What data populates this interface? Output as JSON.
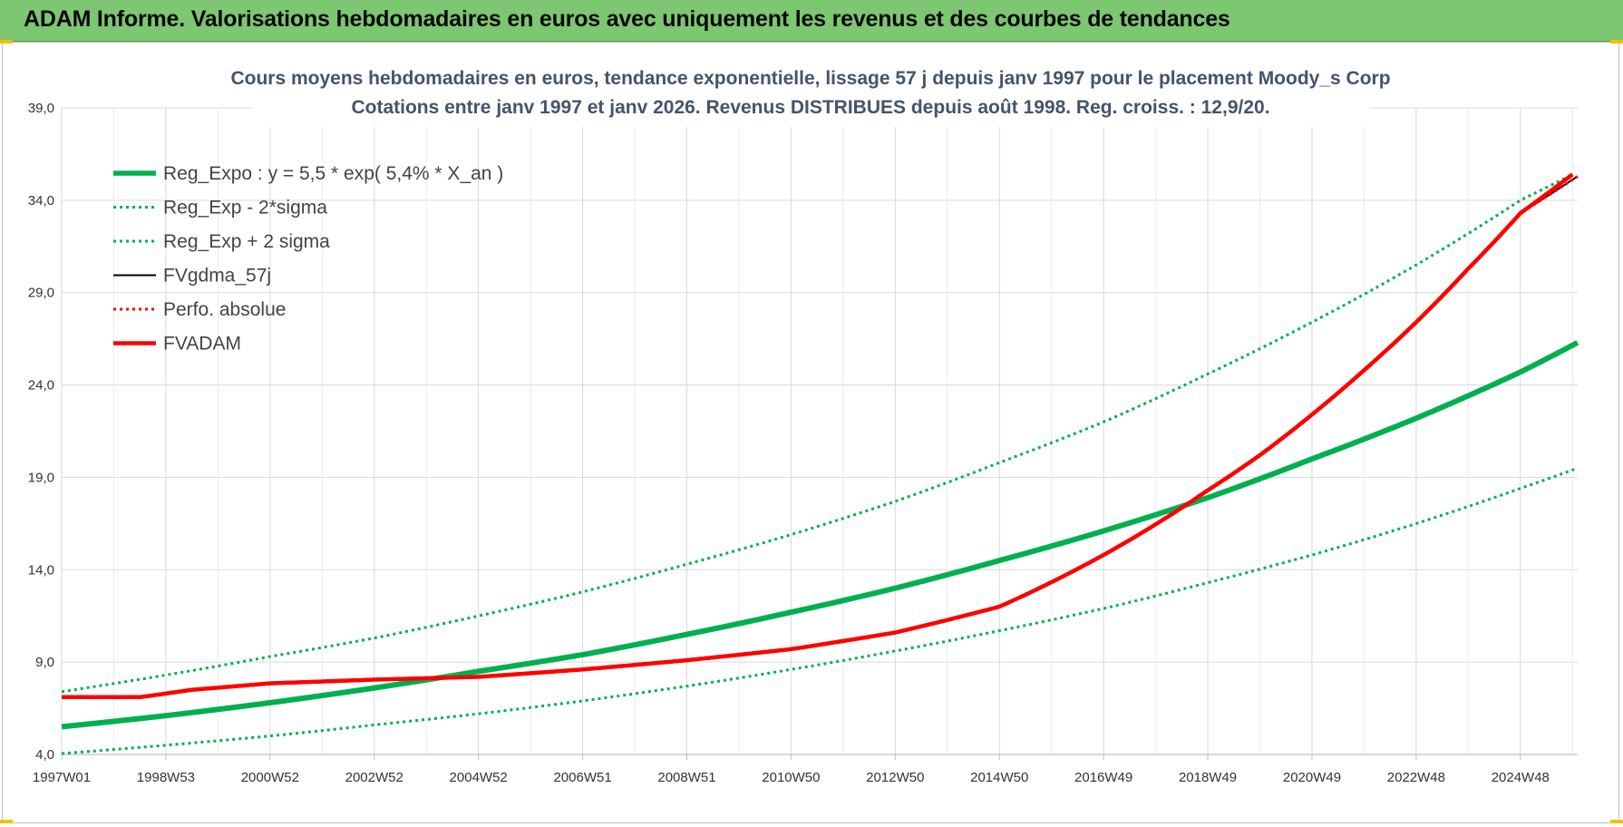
{
  "banner": {
    "title": "ADAM Informe. Valorisations hebdomadaires en euros avec uniquement les revenus et des courbes de tendances"
  },
  "chart_data": {
    "type": "line",
    "title": "Cours moyens hebdomadaires en euros, tendance exponentielle, lissage 57 j depuis janv 1997 pour le placement Moody_s Corp",
    "subtitle": "Cotations entre janv 1997 et janv 2026. Revenus DISTRIBUES depuis août 1998. Reg. croiss. : 12,9/20.",
    "xlabel": "",
    "ylabel": "",
    "ylim": [
      4,
      39
    ],
    "yticks": [
      "4,0",
      "9,0",
      "14,0",
      "19,0",
      "24,0",
      "29,0",
      "34,0",
      "39,0"
    ],
    "ytick_values": [
      4,
      9,
      14,
      19,
      24,
      29,
      34,
      39
    ],
    "xlim": [
      1997.0,
      2026.1
    ],
    "xticks": [
      "1997W01",
      "1998W53",
      "2000W52",
      "2002W52",
      "2004W52",
      "2006W51",
      "2008W51",
      "2010W50",
      "2012W50",
      "2014W50",
      "2016W49",
      "2018W49",
      "2020W49",
      "2022W48",
      "2024W48"
    ],
    "xtick_values": [
      1997.0,
      1999.0,
      2001.0,
      2003.0,
      2005.0,
      2007.0,
      2009.0,
      2011.0,
      2013.0,
      2015.0,
      2017.0,
      2019.0,
      2021.0,
      2023.0,
      2025.0
    ],
    "grid": true,
    "legend_position": "top-left",
    "series": [
      {
        "name": "Reg_Expo : y = 5,5 * exp( 5,4% *  X_an )",
        "color": "#00b050",
        "style": "solid-thick",
        "x": [
          1997,
          1999,
          2001,
          2003,
          2005,
          2007,
          2009,
          2011,
          2013,
          2015,
          2017,
          2019,
          2021,
          2023,
          2025,
          2026.1
        ],
        "values": [
          5.5,
          6.1,
          6.8,
          7.6,
          8.5,
          9.4,
          10.5,
          11.7,
          13.0,
          14.5,
          16.1,
          17.9,
          20.0,
          22.2,
          24.7,
          26.3
        ]
      },
      {
        "name": "Reg_Exp - 2*sigma",
        "color": "#00b050",
        "style": "dotted",
        "x": [
          1997,
          1999,
          2001,
          2003,
          2005,
          2007,
          2009,
          2011,
          2013,
          2015,
          2017,
          2019,
          2021,
          2023,
          2025,
          2026.1
        ],
        "values": [
          4.05,
          4.5,
          5.0,
          5.6,
          6.2,
          6.9,
          7.7,
          8.6,
          9.6,
          10.7,
          11.9,
          13.3,
          14.8,
          16.5,
          18.4,
          19.5
        ]
      },
      {
        "name": "Reg_Exp + 2 sigma",
        "color": "#00b050",
        "style": "dotted",
        "x": [
          1997,
          1999,
          2001,
          2003,
          2005,
          2007,
          2009,
          2011,
          2013,
          2015,
          2017,
          2019,
          2021,
          2023,
          2025,
          2026.0
        ],
        "values": [
          7.4,
          8.3,
          9.3,
          10.3,
          11.5,
          12.8,
          14.3,
          15.9,
          17.7,
          19.8,
          22.0,
          24.6,
          27.4,
          30.5,
          34.0,
          35.4
        ]
      },
      {
        "name": "FVgdma_57j",
        "color": "#000000",
        "style": "solid",
        "x": [
          1997,
          1998.5,
          1999.5,
          2001,
          2003,
          2005,
          2007,
          2009,
          2011,
          2013,
          2015,
          2017,
          2019,
          2020,
          2021,
          2022,
          2023,
          2024,
          2025,
          2026.1
        ],
        "values": [
          7.1,
          7.1,
          7.5,
          7.85,
          8.05,
          8.2,
          8.6,
          9.1,
          9.7,
          10.6,
          12.0,
          14.8,
          18.3,
          20.2,
          22.4,
          24.8,
          27.4,
          30.3,
          33.3,
          35.3
        ]
      },
      {
        "name": "Perfo. absolue",
        "color": "#ff0000",
        "style": "dotted",
        "x": [
          1997,
          1998.5,
          1999.5,
          2001,
          2003,
          2005,
          2007,
          2009,
          2011,
          2013,
          2015,
          2017,
          2019,
          2020,
          2021,
          2022,
          2023,
          2024,
          2025,
          2026.1
        ],
        "values": [
          7.1,
          7.1,
          7.5,
          7.85,
          8.05,
          8.2,
          8.6,
          9.1,
          9.7,
          10.6,
          12.0,
          14.8,
          18.3,
          20.2,
          22.4,
          24.8,
          27.4,
          30.3,
          33.3,
          35.3
        ]
      },
      {
        "name": "FVADAM",
        "color": "#ff0000",
        "style": "solid-thick",
        "x": [
          1997,
          1998.5,
          1999.5,
          2001,
          2003,
          2005,
          2007,
          2009,
          2011,
          2013,
          2015,
          2017,
          2019,
          2020,
          2021,
          2022,
          2023,
          2024,
          2025,
          2026.0
        ],
        "values": [
          7.1,
          7.1,
          7.5,
          7.85,
          8.05,
          8.2,
          8.6,
          9.1,
          9.7,
          10.6,
          12.0,
          14.8,
          18.3,
          20.2,
          22.4,
          24.8,
          27.4,
          30.3,
          33.3,
          35.4
        ]
      }
    ]
  }
}
